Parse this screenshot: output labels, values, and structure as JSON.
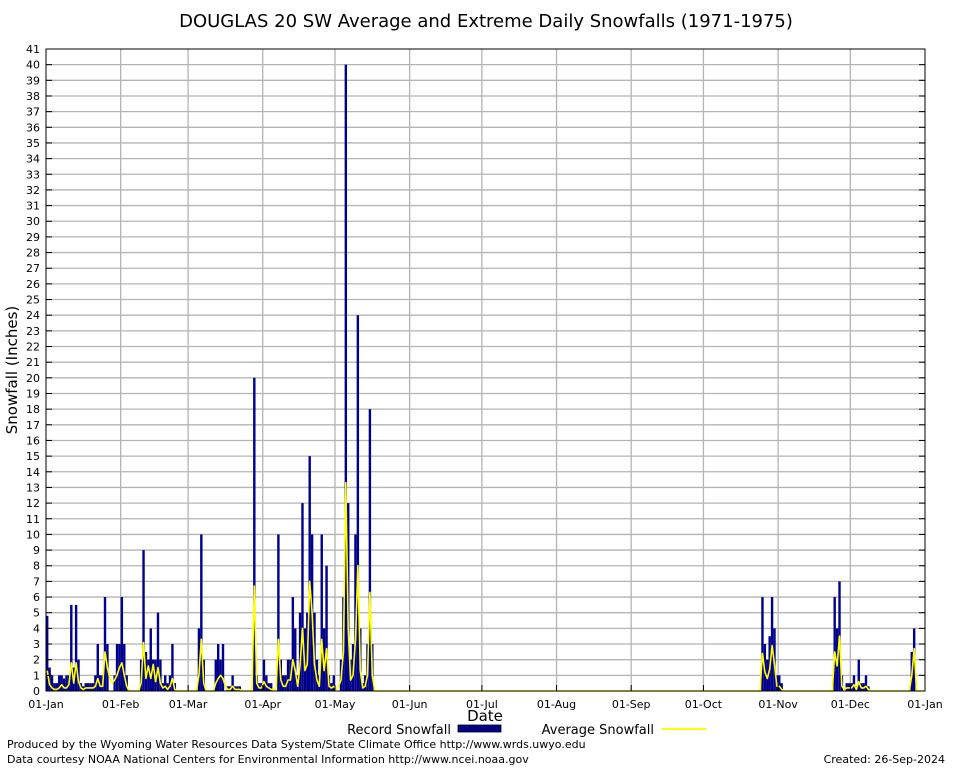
{
  "chart_data": {
    "type": "bar",
    "title": "DOUGLAS 20 SW Average and Extreme Daily Snowfalls (1971-1975)",
    "xlabel": "Date",
    "ylabel": "Snowfall (Inches)",
    "ylim": [
      0,
      41
    ],
    "yticks": [
      0,
      1,
      2,
      3,
      4,
      5,
      6,
      7,
      8,
      9,
      10,
      11,
      12,
      13,
      14,
      15,
      16,
      17,
      18,
      19,
      20,
      21,
      22,
      23,
      24,
      25,
      26,
      27,
      28,
      29,
      30,
      31,
      32,
      33,
      34,
      35,
      36,
      37,
      38,
      39,
      40,
      41
    ],
    "xlim": [
      "01-Jan",
      "01-Jan"
    ],
    "xticks": [
      "01-Jan",
      "01-Feb",
      "01-Mar",
      "01-Apr",
      "01-May",
      "01-Jun",
      "01-Jul",
      "01-Aug",
      "01-Sep",
      "01-Oct",
      "01-Nov",
      "01-Dec",
      "01-Jan"
    ],
    "grid": true,
    "legend_position": "bottom",
    "colors": {
      "record": "#00008b",
      "average": "#ffff00"
    },
    "series": [
      {
        "name": "Record Snowfall",
        "style": "bar",
        "points": [
          [
            "01-Jan",
            4.8
          ],
          [
            "02-Jan",
            1.5
          ],
          [
            "03-Jan",
            1
          ],
          [
            "04-Jan",
            0.5
          ],
          [
            "05-Jan",
            0.5
          ],
          [
            "06-Jan",
            1
          ],
          [
            "07-Jan",
            1
          ],
          [
            "08-Jan",
            0.8
          ],
          [
            "09-Jan",
            1
          ],
          [
            "10-Jan",
            1
          ],
          [
            "11-Jan",
            5.5
          ],
          [
            "12-Jan",
            1.5
          ],
          [
            "13-Jan",
            5.5
          ],
          [
            "14-Jan",
            2
          ],
          [
            "15-Jan",
            0.5
          ],
          [
            "16-Jan",
            0.3
          ],
          [
            "17-Jan",
            0.5
          ],
          [
            "18-Jan",
            0.5
          ],
          [
            "19-Jan",
            0.5
          ],
          [
            "20-Jan",
            0.5
          ],
          [
            "21-Jan",
            1
          ],
          [
            "22-Jan",
            3
          ],
          [
            "23-Jan",
            1
          ],
          [
            "24-Jan",
            1
          ],
          [
            "25-Jan",
            6
          ],
          [
            "26-Jan",
            3
          ],
          [
            "29-Jan",
            1
          ],
          [
            "30-Jan",
            3
          ],
          [
            "31-Jan",
            3
          ],
          [
            "01-Feb",
            6
          ],
          [
            "02-Feb",
            3
          ],
          [
            "03-Feb",
            1
          ],
          [
            "09-Feb",
            2
          ],
          [
            "10-Feb",
            9
          ],
          [
            "11-Feb",
            2.5
          ],
          [
            "12-Feb",
            2
          ],
          [
            "13-Feb",
            4
          ],
          [
            "14-Feb",
            2
          ],
          [
            "15-Feb",
            2
          ],
          [
            "16-Feb",
            5
          ],
          [
            "17-Feb",
            2
          ],
          [
            "18-Feb",
            0.5
          ],
          [
            "19-Feb",
            1
          ],
          [
            "20-Feb",
            0.5
          ],
          [
            "21-Feb",
            1
          ],
          [
            "22-Feb",
            3
          ],
          [
            "23-Feb",
            0.5
          ],
          [
            "05-Mar",
            4
          ],
          [
            "06-Mar",
            10
          ],
          [
            "07-Mar",
            2
          ],
          [
            "12-Mar",
            2
          ],
          [
            "13-Mar",
            3
          ],
          [
            "14-Mar",
            2
          ],
          [
            "15-Mar",
            3
          ],
          [
            "17-Mar",
            0.3
          ],
          [
            "18-Mar",
            0.3
          ],
          [
            "19-Mar",
            1
          ],
          [
            "20-Mar",
            0.3
          ],
          [
            "21-Mar",
            0.3
          ],
          [
            "22-Mar",
            0.3
          ],
          [
            "28-Mar",
            20
          ],
          [
            "29-Mar",
            1
          ],
          [
            "30-Mar",
            0.5
          ],
          [
            "31-Mar",
            0.5
          ],
          [
            "01-Apr",
            2
          ],
          [
            "02-Apr",
            1
          ],
          [
            "03-Apr",
            0.5
          ],
          [
            "04-Apr",
            0.5
          ],
          [
            "07-Apr",
            10
          ],
          [
            "08-Apr",
            2
          ],
          [
            "09-Apr",
            1
          ],
          [
            "10-Apr",
            1
          ],
          [
            "11-Apr",
            2
          ],
          [
            "12-Apr",
            2
          ],
          [
            "13-Apr",
            6
          ],
          [
            "14-Apr",
            4
          ],
          [
            "15-Apr",
            1
          ],
          [
            "16-Apr",
            5
          ],
          [
            "17-Apr",
            12
          ],
          [
            "18-Apr",
            4
          ],
          [
            "19-Apr",
            5
          ],
          [
            "20-Apr",
            15
          ],
          [
            "21-Apr",
            10
          ],
          [
            "22-Apr",
            5
          ],
          [
            "23-Apr",
            2
          ],
          [
            "24-Apr",
            1
          ],
          [
            "25-Apr",
            10
          ],
          [
            "26-Apr",
            4
          ],
          [
            "27-Apr",
            8
          ],
          [
            "28-Apr",
            1
          ],
          [
            "29-Apr",
            0.5
          ],
          [
            "30-Apr",
            1
          ],
          [
            "03-May",
            2
          ],
          [
            "04-May",
            6
          ],
          [
            "05-May",
            40
          ],
          [
            "06-May",
            12
          ],
          [
            "07-May",
            2
          ],
          [
            "08-May",
            3
          ],
          [
            "09-May",
            10
          ],
          [
            "10-May",
            24
          ],
          [
            "11-May",
            4
          ],
          [
            "12-May",
            0.5
          ],
          [
            "13-May",
            1
          ],
          [
            "14-May",
            3
          ],
          [
            "15-May",
            18
          ],
          [
            "16-May",
            3
          ],
          [
            "25-Oct",
            6
          ],
          [
            "26-Oct",
            3
          ],
          [
            "27-Oct",
            2
          ],
          [
            "28-Oct",
            3.5
          ],
          [
            "29-Oct",
            6
          ],
          [
            "30-Oct",
            4
          ],
          [
            "31-Oct",
            1
          ],
          [
            "01-Nov",
            1
          ],
          [
            "02-Nov",
            0.5
          ],
          [
            "24-Nov",
            6
          ],
          [
            "25-Nov",
            4
          ],
          [
            "26-Nov",
            7
          ],
          [
            "27-Nov",
            1
          ],
          [
            "29-Nov",
            0.5
          ],
          [
            "30-Nov",
            0.5
          ],
          [
            "01-Dec",
            0.5
          ],
          [
            "02-Dec",
            1
          ],
          [
            "03-Dec",
            0.3
          ],
          [
            "04-Dec",
            2
          ],
          [
            "05-Dec",
            0.5
          ],
          [
            "06-Dec",
            0.5
          ],
          [
            "07-Dec",
            1
          ],
          [
            "08-Dec",
            0.3
          ],
          [
            "26-Dec",
            2.5
          ],
          [
            "27-Dec",
            4
          ]
        ]
      },
      {
        "name": "Average Snowfall",
        "style": "line",
        "points": [
          [
            "01-Jan",
            1.3
          ],
          [
            "02-Jan",
            0.4
          ],
          [
            "03-Jan",
            0.2
          ],
          [
            "04-Jan",
            0.1
          ],
          [
            "05-Jan",
            0.1
          ],
          [
            "06-Jan",
            0.2
          ],
          [
            "07-Jan",
            0.4
          ],
          [
            "08-Jan",
            0.2
          ],
          [
            "09-Jan",
            0.2
          ],
          [
            "10-Jan",
            0.4
          ],
          [
            "11-Jan",
            1.8
          ],
          [
            "12-Jan",
            0.5
          ],
          [
            "13-Jan",
            1.8
          ],
          [
            "14-Jan",
            0.6
          ],
          [
            "15-Jan",
            0.2
          ],
          [
            "16-Jan",
            0.1
          ],
          [
            "17-Jan",
            0.2
          ],
          [
            "18-Jan",
            0.2
          ],
          [
            "19-Jan",
            0.2
          ],
          [
            "20-Jan",
            0.2
          ],
          [
            "21-Jan",
            0.3
          ],
          [
            "22-Jan",
            0.8
          ],
          [
            "23-Jan",
            0.3
          ],
          [
            "24-Jan",
            0.3
          ],
          [
            "25-Jan",
            2.5
          ],
          [
            "26-Jan",
            1.5
          ],
          [
            "27-Jan",
            0.8
          ],
          [
            "28-Jan",
            0.5
          ],
          [
            "29-Jan",
            0.7
          ],
          [
            "30-Jan",
            1
          ],
          [
            "31-Jan",
            1.5
          ],
          [
            "01-Feb",
            1.8
          ],
          [
            "02-Feb",
            1
          ],
          [
            "03-Feb",
            0.3
          ],
          [
            "04-Feb",
            0
          ],
          [
            "08-Feb",
            0
          ],
          [
            "09-Feb",
            0.5
          ],
          [
            "10-Feb",
            3.1
          ],
          [
            "11-Feb",
            0.8
          ],
          [
            "12-Feb",
            1.6
          ],
          [
            "13-Feb",
            0.8
          ],
          [
            "14-Feb",
            1.7
          ],
          [
            "15-Feb",
            0.6
          ],
          [
            "16-Feb",
            1.5
          ],
          [
            "17-Feb",
            0.5
          ],
          [
            "18-Feb",
            0.2
          ],
          [
            "19-Feb",
            0.3
          ],
          [
            "20-Feb",
            0.1
          ],
          [
            "21-Feb",
            0.3
          ],
          [
            "22-Feb",
            0.8
          ],
          [
            "23-Feb",
            0.1
          ],
          [
            "24-Feb",
            0
          ],
          [
            "04-Mar",
            0
          ],
          [
            "05-Mar",
            1
          ],
          [
            "06-Mar",
            3.3
          ],
          [
            "07-Mar",
            0.5
          ],
          [
            "08-Mar",
            0
          ],
          [
            "11-Mar",
            0
          ],
          [
            "12-Mar",
            0.5
          ],
          [
            "13-Mar",
            0.8
          ],
          [
            "14-Mar",
            1
          ],
          [
            "15-Mar",
            0.8
          ],
          [
            "16-Mar",
            0.3
          ],
          [
            "17-Mar",
            0.1
          ],
          [
            "18-Mar",
            0.1
          ],
          [
            "19-Mar",
            0.3
          ],
          [
            "20-Mar",
            0.1
          ],
          [
            "21-Mar",
            0.1
          ],
          [
            "22-Mar",
            0.1
          ],
          [
            "23-Mar",
            0
          ],
          [
            "27-Mar",
            0
          ],
          [
            "28-Mar",
            6.7
          ],
          [
            "29-Mar",
            0.5
          ],
          [
            "30-Mar",
            0.2
          ],
          [
            "31-Mar",
            0.2
          ],
          [
            "01-Apr",
            0.6
          ],
          [
            "02-Apr",
            0.3
          ],
          [
            "03-Apr",
            0.2
          ],
          [
            "04-Apr",
            0.1
          ],
          [
            "05-Apr",
            0.1
          ],
          [
            "06-Apr",
            0.1
          ],
          [
            "07-Apr",
            3.3
          ],
          [
            "08-Apr",
            0.7
          ],
          [
            "09-Apr",
            0.3
          ],
          [
            "10-Apr",
            0.3
          ],
          [
            "11-Apr",
            0.7
          ],
          [
            "12-Apr",
            0.7
          ],
          [
            "13-Apr",
            2
          ],
          [
            "14-Apr",
            1.3
          ],
          [
            "15-Apr",
            0.3
          ],
          [
            "16-Apr",
            1.7
          ],
          [
            "17-Apr",
            4
          ],
          [
            "18-Apr",
            1.3
          ],
          [
            "19-Apr",
            1.7
          ],
          [
            "20-Apr",
            7
          ],
          [
            "21-Apr",
            5
          ],
          [
            "22-Apr",
            1.7
          ],
          [
            "23-Apr",
            0.7
          ],
          [
            "24-Apr",
            0.3
          ],
          [
            "25-Apr",
            3.3
          ],
          [
            "26-Apr",
            1.3
          ],
          [
            "27-Apr",
            2.7
          ],
          [
            "28-Apr",
            0.3
          ],
          [
            "29-Apr",
            0.2
          ],
          [
            "30-Apr",
            0.3
          ],
          [
            "01-May",
            0.1
          ],
          [
            "02-May",
            0.3
          ],
          [
            "03-May",
            0.7
          ],
          [
            "04-May",
            2.5
          ],
          [
            "05-May",
            13.3
          ],
          [
            "06-May",
            4
          ],
          [
            "07-May",
            0.7
          ],
          [
            "08-May",
            1
          ],
          [
            "09-May",
            3.3
          ],
          [
            "10-May",
            8
          ],
          [
            "11-May",
            1.3
          ],
          [
            "12-May",
            0.2
          ],
          [
            "13-May",
            0.3
          ],
          [
            "14-May",
            1
          ],
          [
            "15-May",
            6.3
          ],
          [
            "16-May",
            1
          ],
          [
            "17-May",
            0
          ],
          [
            "24-Oct",
            0
          ],
          [
            "25-Oct",
            2.4
          ],
          [
            "26-Oct",
            1.2
          ],
          [
            "27-Oct",
            0.8
          ],
          [
            "28-Oct",
            1.4
          ],
          [
            "29-Oct",
            2.9
          ],
          [
            "30-Oct",
            1.7
          ],
          [
            "31-Oct",
            0.3
          ],
          [
            "01-Nov",
            0.3
          ],
          [
            "02-Nov",
            0.1
          ],
          [
            "03-Nov",
            0
          ],
          [
            "23-Nov",
            0
          ],
          [
            "24-Nov",
            2.5
          ],
          [
            "25-Nov",
            1.6
          ],
          [
            "26-Nov",
            3.5
          ],
          [
            "27-Nov",
            0.3
          ],
          [
            "28-Nov",
            0.1
          ],
          [
            "29-Nov",
            0.2
          ],
          [
            "30-Nov",
            0.2
          ],
          [
            "01-Dec",
            0.2
          ],
          [
            "02-Dec",
            0.4
          ],
          [
            "03-Dec",
            0.1
          ],
          [
            "04-Dec",
            0.6
          ],
          [
            "05-Dec",
            0.2
          ],
          [
            "06-Dec",
            0.2
          ],
          [
            "07-Dec",
            0.3
          ],
          [
            "08-Dec",
            0.1
          ],
          [
            "09-Dec",
            0
          ],
          [
            "25-Dec",
            0
          ],
          [
            "26-Dec",
            1
          ],
          [
            "27-Dec",
            2.7
          ],
          [
            "28-Dec",
            0
          ],
          [
            "31-Dec",
            0
          ]
        ]
      }
    ]
  },
  "legend": {
    "record_label": "Record Snowfall",
    "average_label": "Average Snowfall"
  },
  "footer": {
    "line1": "Produced by the Wyoming Water Resources Data System/State Climate Office http://www.wrds.uwyo.edu",
    "line2": "Data courtesy NOAA National Centers for Environmental Information http://www.ncei.noaa.gov",
    "created": "Created:  26-Sep-2024"
  }
}
